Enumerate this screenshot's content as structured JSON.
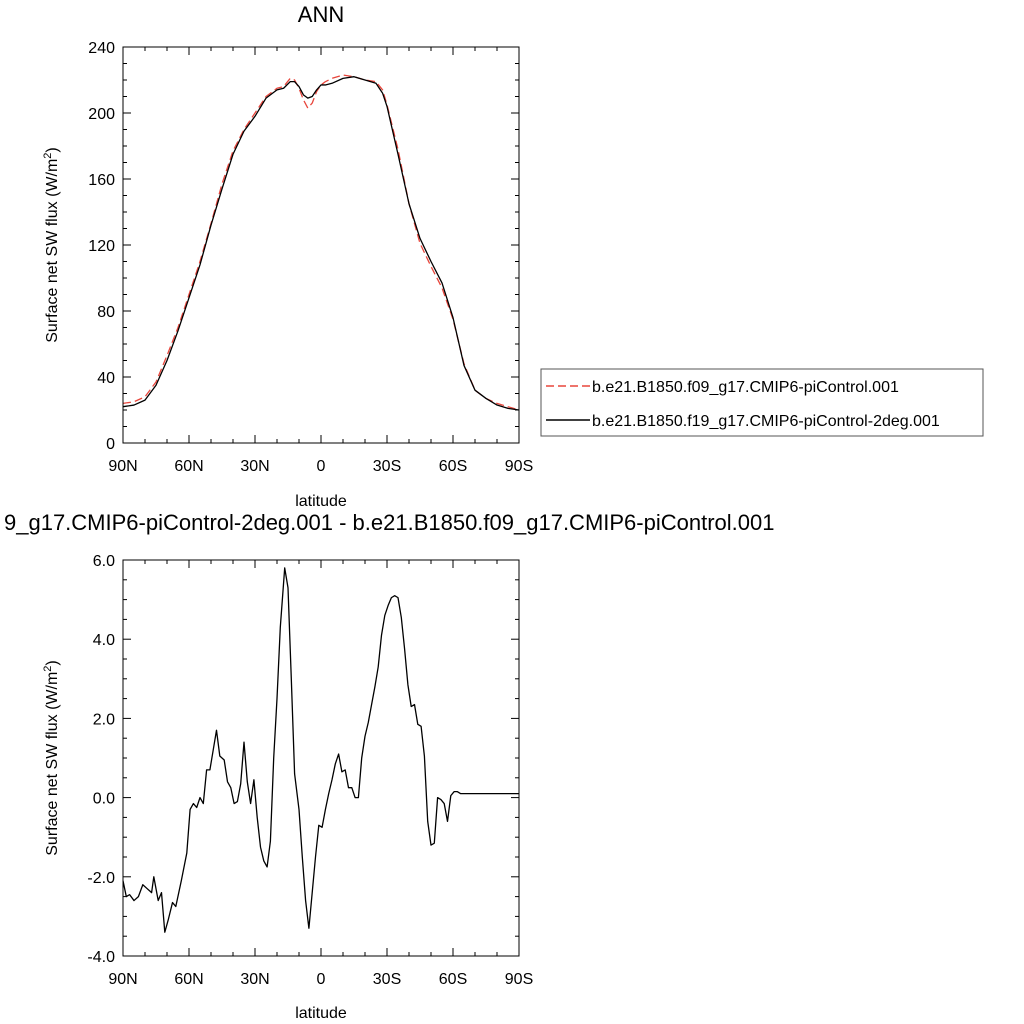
{
  "chart_data": [
    {
      "type": "line",
      "title": "ANN",
      "xlabel": "latitude",
      "ylabel": "Surface net SW flux (W/m",
      "ylabel_sup": "2",
      "ylabel_end": ")",
      "xlim": [
        90,
        -90
      ],
      "ylim": [
        0,
        240
      ],
      "yticks": [
        0,
        40,
        80,
        120,
        160,
        200,
        240
      ],
      "ytick_labels": [
        "0",
        "40",
        "80",
        "120",
        "160",
        "200",
        "240"
      ],
      "xticks": [
        90,
        60,
        30,
        0,
        -30,
        -60,
        -90
      ],
      "xtick_labels": [
        "90N",
        "60N",
        "30N",
        "0",
        "30S",
        "60S",
        "90S"
      ],
      "legend_position": "right",
      "series": [
        {
          "name": "b.e21.B1850.f09_g17.CMIP6-piControl.001",
          "color": "#e8463c",
          "dash": "dashed",
          "x": [
            90,
            85,
            80,
            75,
            70,
            65,
            60,
            55,
            50,
            45,
            40,
            35,
            30,
            25,
            20,
            17,
            14,
            12,
            10,
            8,
            6,
            4,
            2,
            0,
            -2,
            -5,
            -10,
            -15,
            -20,
            -25,
            -28,
            -30,
            -35,
            -40,
            -45,
            -50,
            -55,
            -60,
            -65,
            -70,
            -75,
            -80,
            -85,
            -90
          ],
          "values": [
            24,
            25,
            28,
            37,
            53,
            70,
            90,
            110,
            133,
            157,
            177,
            190,
            200,
            210,
            215,
            216,
            221,
            220,
            215,
            208,
            203,
            206,
            213,
            217,
            219,
            221,
            223,
            222,
            220,
            219,
            214,
            205,
            178,
            145,
            121,
            107,
            94,
            75,
            48,
            32,
            27,
            24,
            22,
            20
          ]
        },
        {
          "name": "b.e21.B1850.f19_g17.CMIP6-piControl-2deg.001",
          "color": "#000000",
          "dash": "solid",
          "x": [
            90,
            85,
            80,
            75,
            70,
            65,
            60,
            55,
            50,
            45,
            40,
            35,
            30,
            25,
            20,
            17,
            14,
            12,
            10,
            8,
            6,
            4,
            2,
            0,
            -2,
            -5,
            -10,
            -15,
            -20,
            -25,
            -28,
            -30,
            -35,
            -40,
            -45,
            -50,
            -55,
            -60,
            -65,
            -70,
            -75,
            -80,
            -85,
            -90
          ],
          "values": [
            22,
            23,
            26,
            35,
            50,
            68,
            88,
            108,
            132,
            154,
            175,
            189,
            198,
            209,
            214,
            215,
            219,
            219,
            216,
            211,
            209,
            210,
            214,
            217,
            217,
            218,
            221,
            222,
            220,
            218,
            212,
            204,
            175,
            145,
            124,
            110,
            97,
            76,
            47,
            32,
            27,
            23,
            21,
            20
          ]
        }
      ]
    },
    {
      "type": "line",
      "title": "9_g17.CMIP6-piControl-2deg.001 - b.e21.B1850.f09_g17.CMIP6-piControl.001",
      "xlabel": "latitude",
      "ylabel": "Surface net SW flux (W/m",
      "ylabel_sup": "2",
      "ylabel_end": ")",
      "xlim": [
        90,
        -90
      ],
      "ylim": [
        -4,
        6
      ],
      "yticks": [
        -4,
        -2,
        0,
        2,
        4,
        6
      ],
      "ytick_labels": [
        "-4.0",
        "-2.0",
        "0.0",
        "2.0",
        "4.0",
        "6.0"
      ],
      "xticks": [
        90,
        60,
        30,
        0,
        -30,
        -60,
        -90
      ],
      "xtick_labels": [
        "90N",
        "60N",
        "30N",
        "0",
        "30S",
        "60S",
        "90S"
      ],
      "series": [
        {
          "color": "#000000",
          "x": [
            90,
            88.5,
            87,
            85,
            83,
            81,
            79,
            77,
            76,
            74,
            72.5,
            71,
            69.5,
            67.5,
            66,
            63.5,
            61,
            59.5,
            58,
            56.5,
            55,
            53.5,
            52,
            50.5,
            49,
            47.5,
            46,
            44,
            42.5,
            41,
            39.5,
            38,
            36.5,
            35,
            33.5,
            32,
            30.5,
            29,
            27.5,
            26,
            24.5,
            23,
            21.5,
            20,
            18.5,
            16.5,
            15,
            13.5,
            12,
            10,
            8.5,
            7,
            5.5,
            4,
            2.5,
            1,
            -0.5,
            -2,
            -3.5,
            -5,
            -6.5,
            -8,
            -9.5,
            -11,
            -12.5,
            -14,
            -15.5,
            -17,
            -18.5,
            -20,
            -21.5,
            -23,
            -24.5,
            -26,
            -27.5,
            -29,
            -30.5,
            -32,
            -33.5,
            -35,
            -36.5,
            -38,
            -39.5,
            -41,
            -42.5,
            -44,
            -45.5,
            -47,
            -48.5,
            -50,
            -51.5,
            -53,
            -54.5,
            -56,
            -57.5,
            -59,
            -60.5,
            -62,
            -63.5,
            -65,
            -66.5,
            -68,
            -69.5,
            -71,
            -72.5,
            -74,
            -75.5,
            -77,
            -78.5,
            -80,
            -81.5,
            -83,
            -84.5,
            -86,
            -87.5,
            -89,
            -90
          ],
          "values": [
            -2.1,
            -2.5,
            -2.45,
            -2.6,
            -2.5,
            -2.2,
            -2.3,
            -2.4,
            -2.0,
            -2.6,
            -2.4,
            -3.4,
            -3.1,
            -2.65,
            -2.75,
            -2.1,
            -1.4,
            -0.3,
            -0.15,
            -0.25,
            0.0,
            -0.15,
            0.7,
            0.7,
            1.2,
            1.7,
            1.05,
            0.95,
            0.4,
            0.25,
            -0.15,
            -0.1,
            0.35,
            1.4,
            0.4,
            -0.15,
            0.45,
            -0.5,
            -1.25,
            -1.6,
            -1.75,
            -1.1,
            1.0,
            2.5,
            4.3,
            5.8,
            5.3,
            3.0,
            0.6,
            -0.3,
            -1.5,
            -2.6,
            -3.3,
            -2.4,
            -1.5,
            -0.7,
            -0.75,
            -0.3,
            0.1,
            0.45,
            0.85,
            1.1,
            0.65,
            0.7,
            0.25,
            0.25,
            0.0,
            0.0,
            1.0,
            1.55,
            1.9,
            2.35,
            2.8,
            3.3,
            4.1,
            4.6,
            4.85,
            5.05,
            5.1,
            5.05,
            4.55,
            3.75,
            2.85,
            2.3,
            2.35,
            1.85,
            1.8,
            1.05,
            -0.6,
            -1.2,
            -1.15,
            0.0,
            -0.05,
            -0.15,
            -0.6,
            0.05,
            0.15,
            0.15,
            0.1,
            0.1,
            0.1,
            0.1,
            0.1,
            0.1,
            0.1,
            0.1,
            0.1,
            0.1,
            0.1,
            0.1,
            0.1,
            0.1,
            0.1,
            0.1,
            0.1,
            0.1,
            0.1
          ]
        }
      ]
    }
  ]
}
